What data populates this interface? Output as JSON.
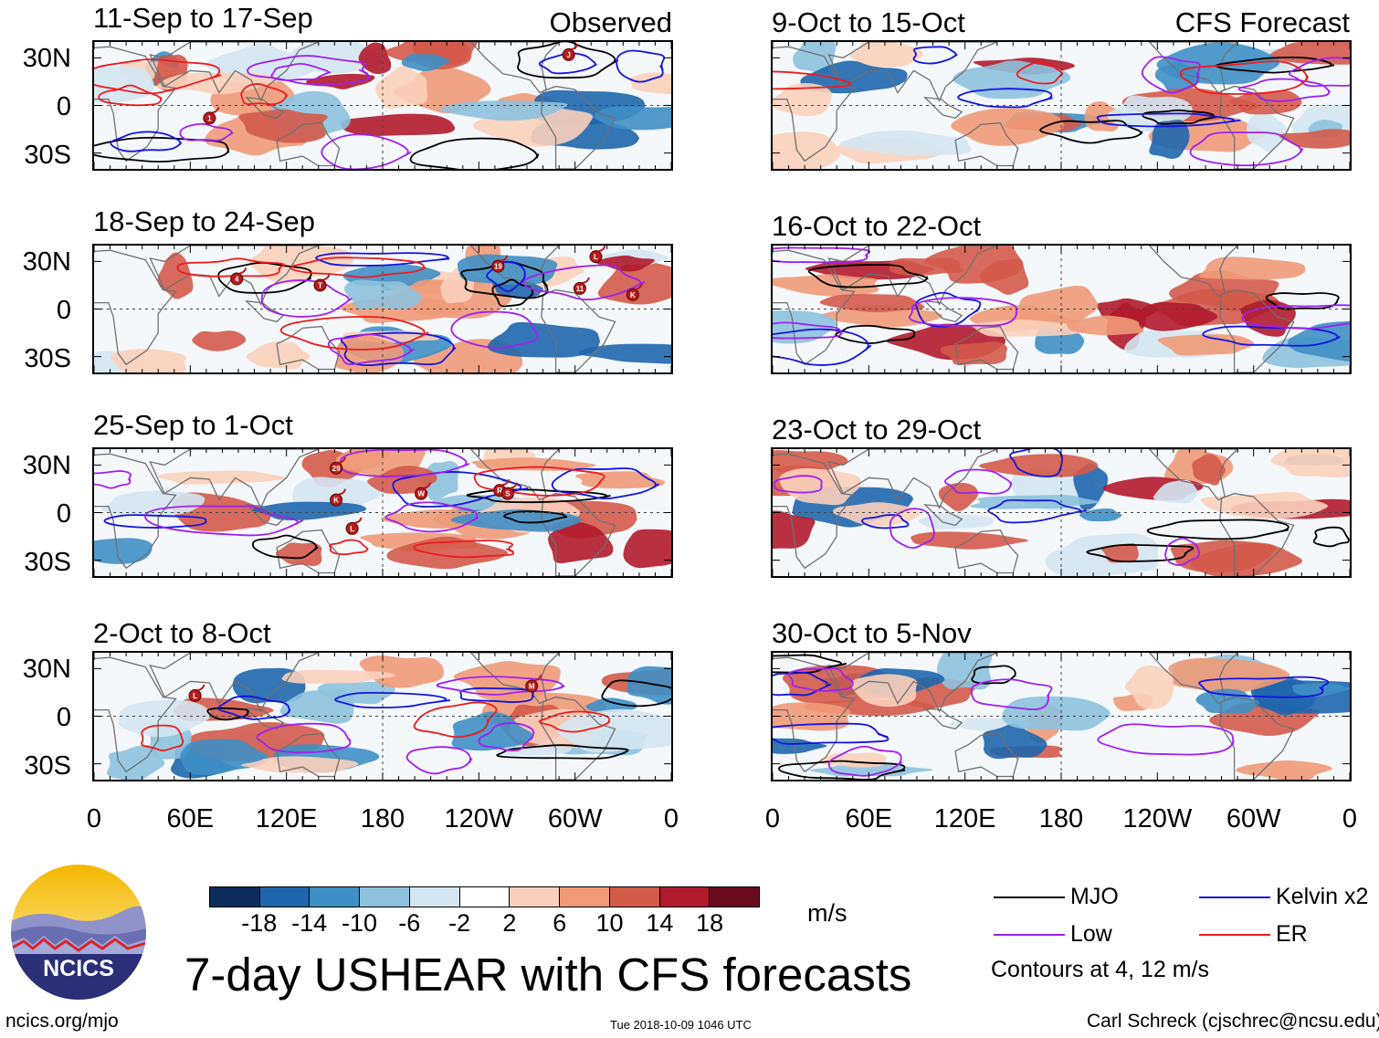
{
  "figure": {
    "title": "7-day USHEAR with CFS forecasts",
    "units": "m/s",
    "contour_note": "Contours at 4, 12 m/s",
    "source_url": "ncics.org/mjo",
    "timestamp": "Tue 2018-10-09 1046 UTC",
    "author": "Carl Schreck (cjschrec@ncsu.edu)",
    "logo_text": "NCICS",
    "observed_label": "Observed",
    "forecast_label": "CFS Forecast"
  },
  "chart_data": {
    "type": "heatmap",
    "variable": "7-day zonal wind shear anomaly (USHEAR)",
    "units": "m/s",
    "lat_ticks": [
      "30N",
      "0",
      "30S"
    ],
    "lon_ticks": [
      "0",
      "60E",
      "120E",
      "180",
      "120W",
      "60W",
      "0"
    ],
    "lat_range_deg": [
      -40,
      40
    ],
    "lon_range_deg": [
      0,
      360
    ],
    "colorbar": {
      "levels": [
        "-18",
        "-14",
        "-10",
        "-6",
        "-2",
        "2",
        "6",
        "10",
        "14",
        "18"
      ],
      "colors": [
        "#0a2d5c",
        "#1f66ad",
        "#3f8fc5",
        "#8ec2de",
        "#d4e6f2",
        "#ffffff",
        "#fbd0bb",
        "#f09a78",
        "#d45a4a",
        "#b11a2c",
        "#6a0a1f"
      ]
    },
    "legend": [
      {
        "label": "MJO",
        "color": "#000000"
      },
      {
        "label": "Kelvin x2",
        "color": "#1414e0"
      },
      {
        "label": "Low",
        "color": "#a020f0"
      },
      {
        "label": "ER",
        "color": "#ee1c1c"
      }
    ],
    "panels": [
      {
        "id": "obs1",
        "period": "11-Sep to 17-Sep",
        "source": "observed",
        "storms": [
          {
            "label": "J",
            "lon_deg": 296,
            "lat_deg": 32
          },
          {
            "label": "1",
            "lon_deg": 72,
            "lat_deg": -8
          }
        ]
      },
      {
        "id": "obs2",
        "period": "18-Sep to 24-Sep",
        "source": "observed",
        "storms": [
          {
            "label": "4",
            "lon_deg": 89,
            "lat_deg": 19
          },
          {
            "label": "T",
            "lon_deg": 141,
            "lat_deg": 15
          },
          {
            "label": "19",
            "lon_deg": 252,
            "lat_deg": 27
          },
          {
            "label": "L",
            "lon_deg": 313,
            "lat_deg": 33
          },
          {
            "label": "11",
            "lon_deg": 303,
            "lat_deg": 13
          },
          {
            "label": "K",
            "lon_deg": 336,
            "lat_deg": 9
          }
        ]
      },
      {
        "id": "obs3",
        "period": "25-Sep to 1-Oct",
        "source": "observed",
        "storms": [
          {
            "label": "29",
            "lon_deg": 151,
            "lat_deg": 28
          },
          {
            "label": "K",
            "lon_deg": 151,
            "lat_deg": 8
          },
          {
            "label": "W",
            "lon_deg": 204,
            "lat_deg": 12
          },
          {
            "label": "L",
            "lon_deg": 161,
            "lat_deg": -10
          },
          {
            "label": "R",
            "lon_deg": 253,
            "lat_deg": 14
          },
          {
            "label": "S",
            "lon_deg": 258,
            "lat_deg": 12
          }
        ]
      },
      {
        "id": "obs4",
        "period": "2-Oct to 8-Oct",
        "source": "observed",
        "storms": [
          {
            "label": "L",
            "lon_deg": 63,
            "lat_deg": 13
          },
          {
            "label": "M",
            "lon_deg": 273,
            "lat_deg": 19
          }
        ]
      },
      {
        "id": "fc1",
        "period": "9-Oct to 15-Oct",
        "source": "CFS forecast",
        "storms": []
      },
      {
        "id": "fc2",
        "period": "16-Oct to 22-Oct",
        "source": "CFS forecast",
        "storms": []
      },
      {
        "id": "fc3",
        "period": "23-Oct to 29-Oct",
        "source": "CFS forecast",
        "storms": []
      },
      {
        "id": "fc4",
        "period": "30-Oct to 5-Nov",
        "source": "CFS forecast",
        "storms": []
      }
    ]
  }
}
